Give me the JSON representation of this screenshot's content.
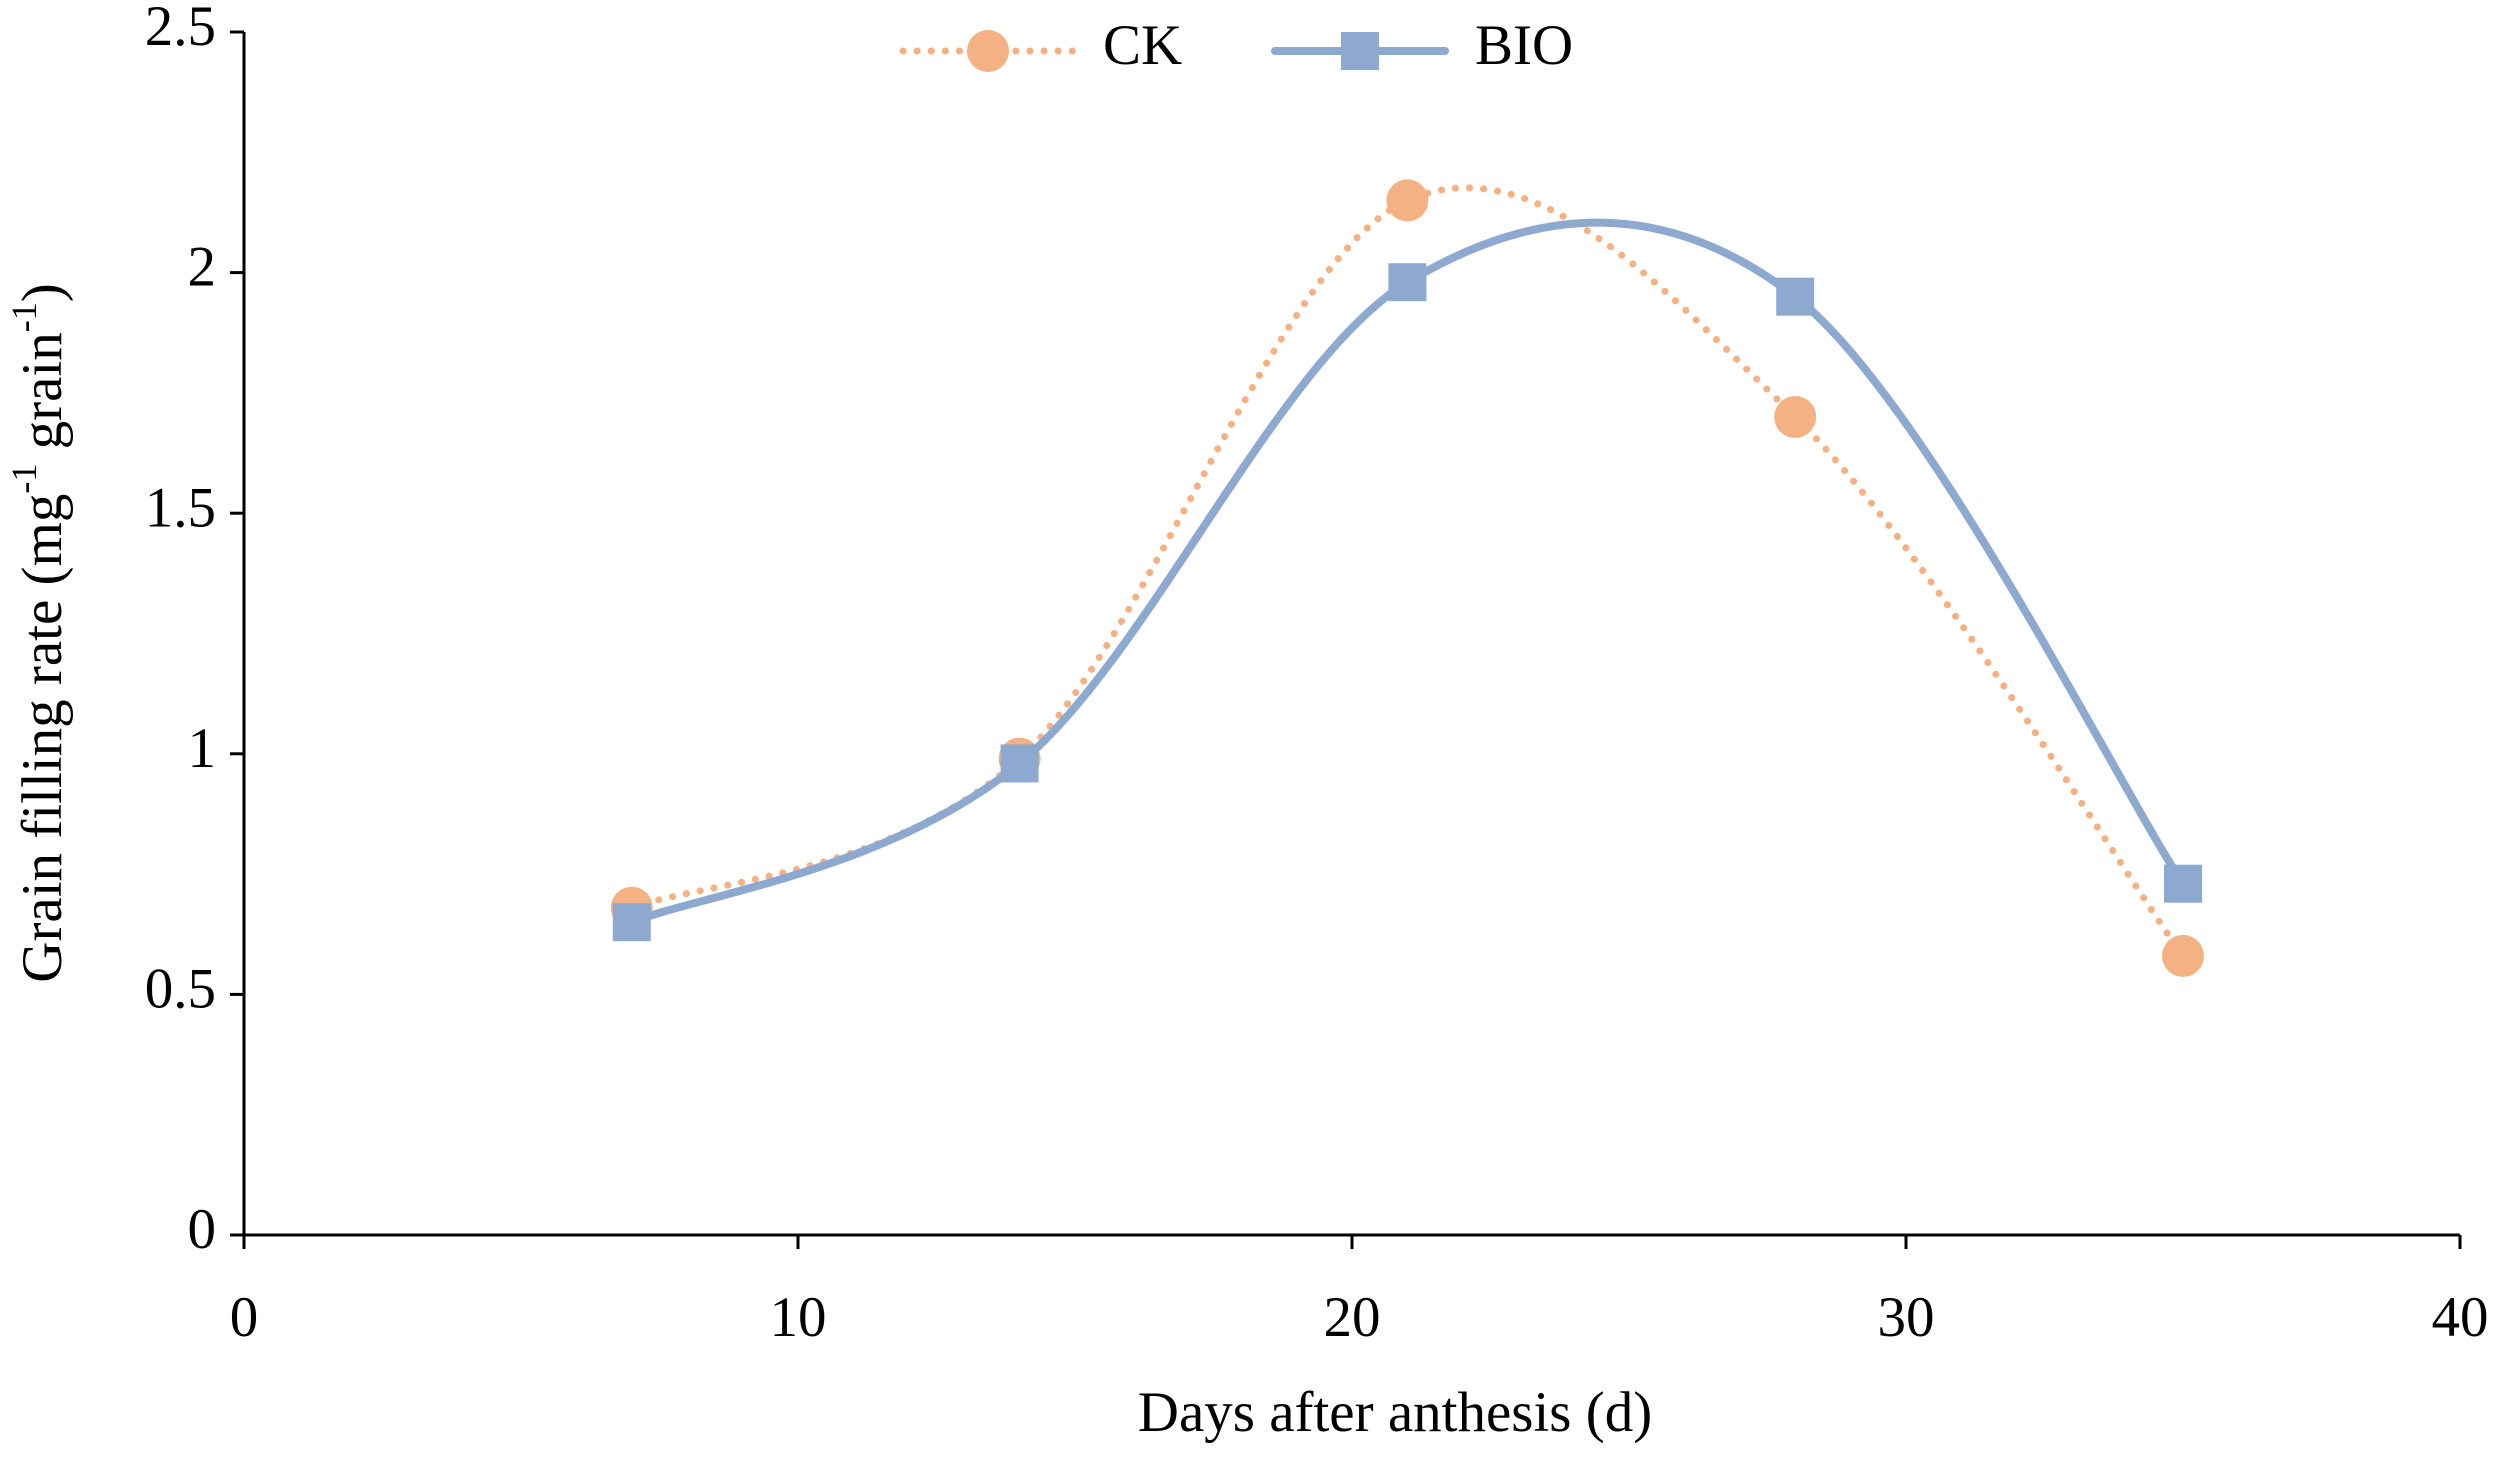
{
  "chart_data": {
    "type": "line",
    "y_label": [
      "Grain filling rate (mg",
      "-1",
      " grain",
      "-1",
      ")"
    ],
    "x_label": "Days after anthesis (d)",
    "x": [
      7,
      14,
      21,
      28,
      35
    ],
    "series": [
      {
        "name": "CK",
        "color": "#f4b183",
        "marker": "circle",
        "line": "dotted",
        "values": [
          0.68,
          0.99,
          2.15,
          1.7,
          0.58
        ]
      },
      {
        "name": "BIO",
        "color": "#8ea9cf",
        "marker": "square",
        "line": "solid",
        "values": [
          0.65,
          0.98,
          1.98,
          1.95,
          0.73
        ]
      }
    ],
    "xlim": [
      0,
      40
    ],
    "xticks": [
      0,
      10,
      20,
      30,
      40
    ],
    "ylim": [
      0,
      2.5
    ],
    "yticks": [
      0,
      0.5,
      1,
      1.5,
      2,
      2.5
    ],
    "smooth": true,
    "grid": false,
    "legend": "top"
  }
}
